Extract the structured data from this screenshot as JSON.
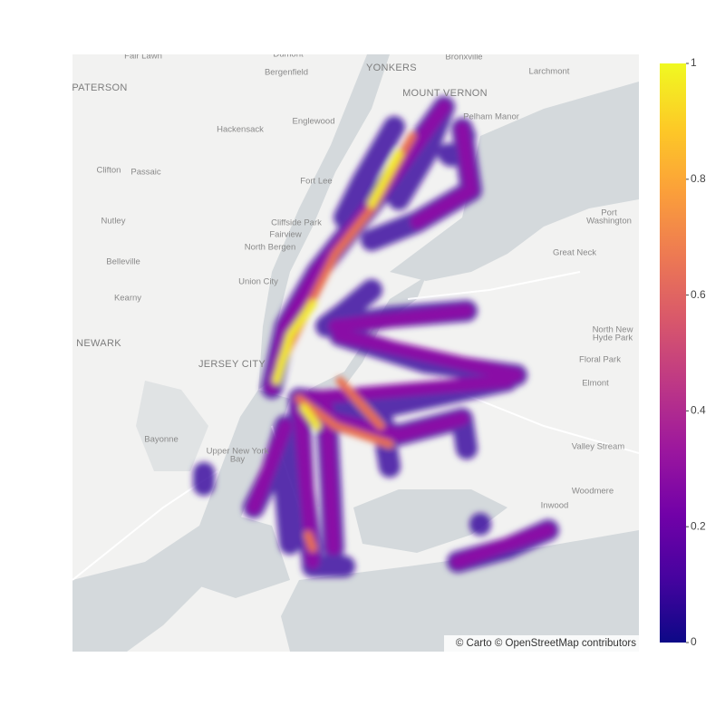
{
  "map": {
    "place_labels": [
      "Fair Lawn",
      "Dumont",
      "Bronxville",
      "Bergenfield",
      "YONKERS",
      "Larchmont",
      "PATERSON",
      "MOUNT VERNON",
      "Pelham Manor",
      "Englewood",
      "Hackensack",
      "Clifton",
      "Passaic",
      "Fort Lee",
      "Port",
      "Washington",
      "Nutley",
      "Cliffside Park",
      "Fairview",
      "North Bergen",
      "Great Neck",
      "Belleville",
      "Union City",
      "Kearny",
      "North New",
      "Hyde Park",
      "NEWARK",
      "JERSEY CITY",
      "Floral Park",
      "Elmont",
      "Bayonne",
      "Valley Stream",
      "Upper New York",
      "Bay",
      "Woodmere",
      "Inwood"
    ],
    "attribution": "© Carto © OpenStreetMap contributors"
  },
  "colorbar": {
    "colorscale": [
      "#0d0887",
      "#46039f",
      "#7201a8",
      "#9c179e",
      "#bd3786",
      "#d8576b",
      "#ed7953",
      "#fb9f3a",
      "#fdca26",
      "#f0f921"
    ],
    "range": [
      0,
      1
    ],
    "ticks": [
      0,
      0.2,
      0.4,
      0.6,
      0.8,
      1
    ]
  }
}
